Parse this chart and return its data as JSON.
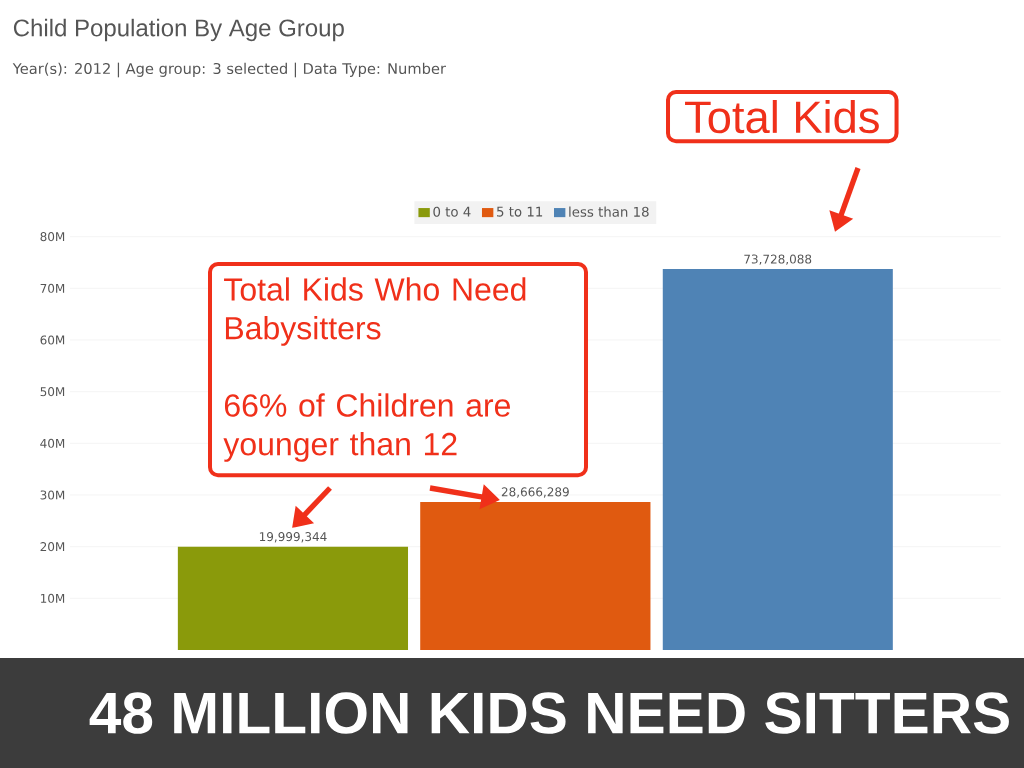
{
  "chart_data": {
    "type": "bar",
    "title": "Child Population By Age Group",
    "subtitle": "Year(s): 2012 | Age group: 3 selected | Data Type: Number",
    "categories": [
      null,
      null,
      null
    ],
    "series": [
      {
        "name": "0 to 4",
        "color": "#8a9a0b",
        "values": [
          19999344,
          null,
          null
        ],
        "value_labels": [
          "19,999,344",
          null,
          null
        ]
      },
      {
        "name": "5 to 11",
        "color": "#e05a10",
        "values": [
          null,
          28666289,
          null
        ],
        "value_labels": [
          null,
          "28,666,289",
          null
        ]
      },
      {
        "name": "less than 18",
        "color": "#4f83b5",
        "values": [
          null,
          null,
          73728088
        ],
        "value_labels": [
          null,
          null,
          "73,728,088"
        ]
      }
    ],
    "ylim": [
      0,
      80000000
    ],
    "yticks": [
      {
        "value": 10000000,
        "label": "10M"
      },
      {
        "value": 20000000,
        "label": "20M"
      },
      {
        "value": 30000000,
        "label": "30M"
      },
      {
        "value": 40000000,
        "label": "40M"
      },
      {
        "value": 50000000,
        "label": "50M"
      },
      {
        "value": 60000000,
        "label": "60M"
      },
      {
        "value": 70000000,
        "label": "70M"
      },
      {
        "value": 80000000,
        "label": "80M"
      }
    ],
    "grid": "y",
    "legend": "top",
    "annotations": [
      "Total Kids",
      "Total Kids Who Need Babysitters",
      "66% of Children are younger than 12",
      "48 MILLION KIDS NEED SITTERS"
    ]
  }
}
